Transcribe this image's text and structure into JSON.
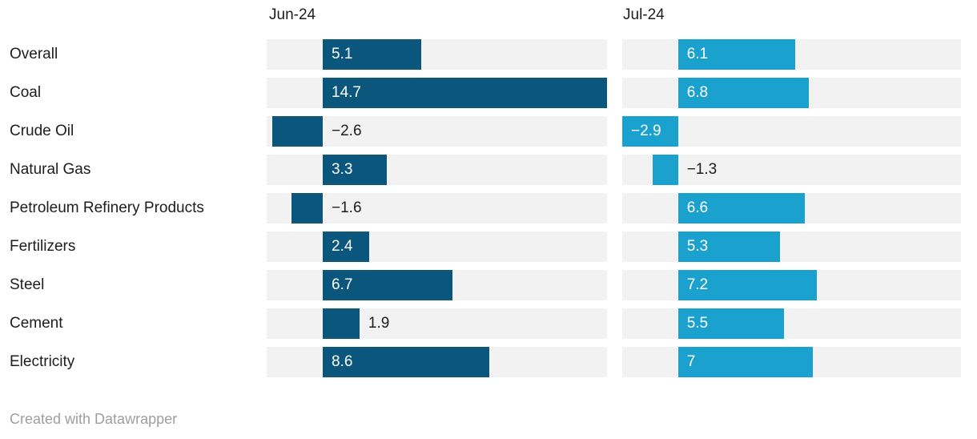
{
  "header": {
    "col1": "Jun-24",
    "col2": "Jul-24"
  },
  "footer": {
    "credit": "Created with Datawrapper"
  },
  "colors": {
    "jun_bar": "#0a567d",
    "jul_bar": "#1aa1ce",
    "track": "#f2f2f2",
    "text": "#1d1d1d",
    "value_inside_text": "#ffffff",
    "credit_text": "#9e9e9e"
  },
  "chart_data": {
    "type": "bar",
    "orientation": "horizontal",
    "title": "",
    "xlabel": "",
    "ylabel": "",
    "xlim": [
      -2.9,
      14.7
    ],
    "grid": false,
    "legend_position": "column-headers",
    "categories": [
      "Overall",
      "Coal",
      "Crude Oil",
      "Natural Gas",
      "Petroleum Refinery Products",
      "Fertilizers",
      "Steel",
      "Cement",
      "Electricity"
    ],
    "series": [
      {
        "name": "Jun-24",
        "color": "#0a567d",
        "values": [
          5.1,
          14.7,
          -2.6,
          3.3,
          -1.6,
          2.4,
          6.7,
          1.9,
          8.6
        ],
        "labels": [
          "5.1",
          "14.7",
          "−2.6",
          "3.3",
          "−1.6",
          "2.4",
          "6.7",
          "1.9",
          "8.6"
        ],
        "label_inside": [
          true,
          true,
          false,
          true,
          false,
          true,
          true,
          false,
          true
        ]
      },
      {
        "name": "Jul-24",
        "color": "#1aa1ce",
        "values": [
          6.1,
          6.8,
          -2.9,
          -1.3,
          6.6,
          5.3,
          7.2,
          5.5,
          7
        ],
        "labels": [
          "6.1",
          "6.8",
          "−2.9",
          "−1.3",
          "6.6",
          "5.3",
          "7.2",
          "5.5",
          "7"
        ],
        "label_inside": [
          true,
          true,
          true,
          false,
          true,
          true,
          true,
          true,
          true
        ]
      }
    ]
  }
}
